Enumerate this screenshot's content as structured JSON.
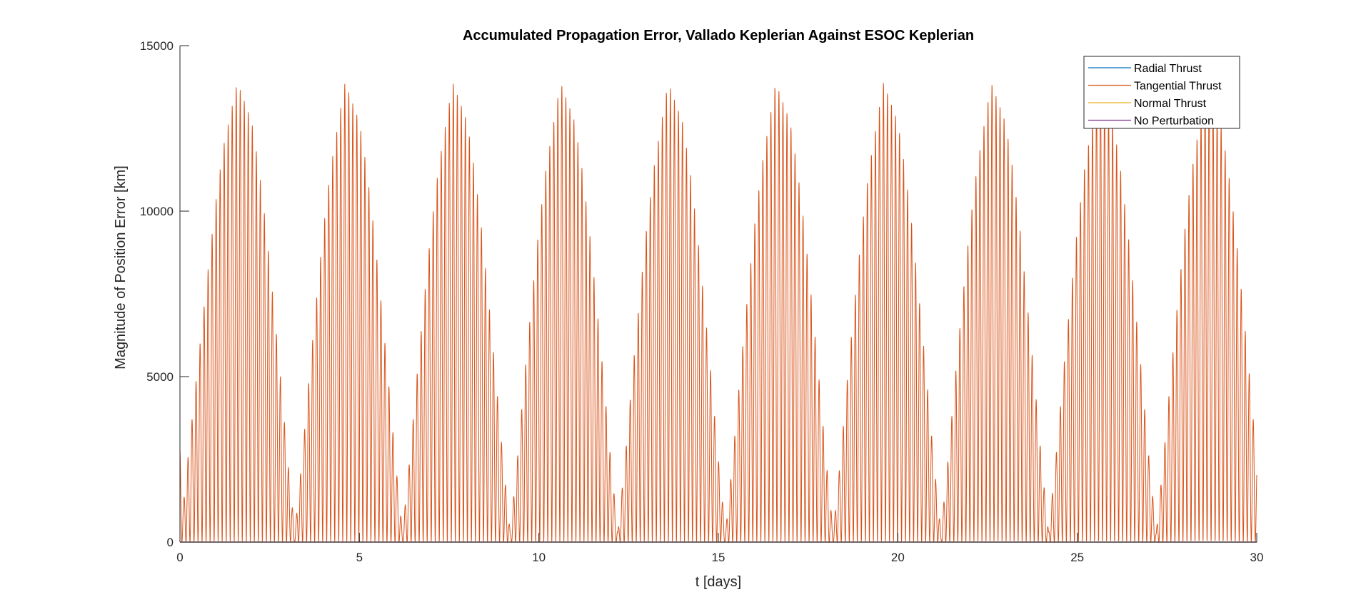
{
  "chart_data": {
    "type": "line",
    "title": "Accumulated Propagation Error, Vallado Keplerian Against ESOC Keplerian",
    "xlabel": "t [days]",
    "ylabel": "Magnitude of Position Error [km]",
    "xlim": [
      0,
      30
    ],
    "ylim": [
      0,
      15000
    ],
    "xticks": [
      0,
      5,
      10,
      15,
      20,
      25,
      30
    ],
    "yticks": [
      0,
      5000,
      10000,
      15000
    ],
    "grid": false,
    "legend_position": "top-right",
    "series": [
      {
        "name": "Radial Thrust",
        "color": "#0072BD",
        "x": [
          0,
          30
        ],
        "y": [
          0,
          0
        ]
      },
      {
        "name": "Tangential Thrust",
        "color": "#D95319",
        "envelope_x": [
          0,
          0.1,
          0.2,
          0.5,
          0.8,
          1.0,
          1.2,
          1.6,
          2.0,
          2.2,
          2.4,
          2.6,
          2.8,
          3.0,
          3.2,
          3.4,
          3.6,
          3.8,
          4.0,
          4.2,
          4.6,
          5.0,
          5.2,
          5.4,
          5.6,
          5.8,
          6.0,
          6.2,
          6.4,
          6.6,
          6.8,
          7.0,
          7.2,
          7.6,
          8.0,
          8.2,
          8.4,
          8.6,
          8.8,
          9.0,
          9.2,
          9.4,
          9.6,
          9.8,
          10.0,
          10.2,
          10.6,
          11.0,
          11.2,
          11.4,
          11.6,
          11.8,
          12.0,
          12.2,
          12.4,
          12.6,
          12.8,
          13.0,
          13.2,
          13.6,
          14.0,
          14.2,
          14.4,
          14.6,
          14.8,
          15.0,
          15.2,
          15.4,
          15.6,
          15.8,
          16.0,
          16.2,
          16.6,
          17.0,
          17.2,
          17.4,
          17.6,
          17.8,
          18.0,
          18.2,
          18.4,
          18.6,
          18.8,
          19.0,
          19.2,
          19.6,
          20.0,
          20.2,
          20.4,
          20.6,
          20.8,
          21.0,
          21.2,
          21.4,
          21.6,
          21.8,
          22.0,
          22.2,
          22.6,
          23.0,
          23.2,
          23.4,
          23.6,
          23.8,
          24.0,
          24.2,
          24.4,
          24.6,
          24.8,
          25.0,
          25.2,
          25.6,
          26.0,
          26.2,
          26.4,
          26.6,
          26.8,
          27.0,
          27.2,
          27.4,
          27.6,
          27.8,
          28.0,
          28.2,
          28.6,
          29.0,
          29.2,
          29.4,
          29.6,
          29.8,
          30.0
        ],
        "envelope_y": [
          2800,
          1200,
          2300,
          5400,
          8400,
          10300,
          11900,
          13900,
          12700,
          11300,
          9500,
          7300,
          5000,
          2500,
          300,
          2500,
          5000,
          7300,
          9500,
          11300,
          13900,
          12700,
          11300,
          9500,
          7300,
          5000,
          2500,
          300,
          2500,
          5000,
          7300,
          9500,
          11300,
          13900,
          12700,
          11300,
          9500,
          7300,
          5000,
          2500,
          300,
          2500,
          5000,
          7300,
          9500,
          11300,
          13900,
          12700,
          11300,
          9500,
          7300,
          5000,
          2500,
          300,
          2500,
          5000,
          7300,
          9500,
          11300,
          13900,
          12700,
          11300,
          9500,
          7300,
          5000,
          2500,
          300,
          2500,
          5000,
          7300,
          9500,
          11300,
          13900,
          12700,
          11300,
          9500,
          7300,
          5000,
          2500,
          300,
          2500,
          5000,
          7300,
          9500,
          11300,
          13900,
          12700,
          11300,
          9500,
          7300,
          5000,
          2500,
          300,
          2500,
          5000,
          7300,
          9500,
          11300,
          13900,
          12700,
          11300,
          9500,
          7300,
          5000,
          2500,
          300,
          2500,
          5000,
          7300,
          9500,
          11300,
          13900,
          12700,
          11300,
          9500,
          7300,
          5000,
          2500,
          300,
          2500,
          5000,
          7300,
          9500,
          11300,
          13900,
          12700,
          11300,
          9500,
          7300,
          5000,
          2500,
          300,
          5200
        ]
      },
      {
        "name": "Normal Thrust",
        "color": "#EDB120",
        "x": [
          0,
          30
        ],
        "y": [
          0,
          0
        ]
      },
      {
        "name": "No Perturbation",
        "color": "#7E2F8E",
        "x": [
          0,
          30
        ],
        "y": [
          0,
          0
        ]
      }
    ]
  }
}
